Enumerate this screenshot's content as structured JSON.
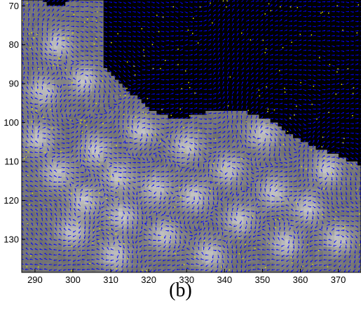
{
  "caption": "(b)",
  "chart_data": {
    "type": "vector-field",
    "title": "",
    "xlabel": "",
    "ylabel": "",
    "xlim": [
      286.5,
      376
    ],
    "ylim": [
      138.5,
      68.5
    ],
    "y_direction": "downward",
    "xticks": [
      290,
      300,
      310,
      320,
      330,
      340,
      350,
      360,
      370
    ],
    "yticks": [
      70,
      80,
      90,
      100,
      110,
      120,
      130
    ],
    "background_colors": {
      "masked_region": "#000000",
      "image_low": "#6e6e6e",
      "image_high": "#c8c8c8"
    },
    "vector_color": "#0000ff",
    "marker_color": "#e8e800",
    "mask_boundary": [
      {
        "x": 286.5,
        "y": 68.5
      },
      {
        "x": 292,
        "y": 68.5
      },
      {
        "x": 293,
        "y": 70
      },
      {
        "x": 298,
        "y": 70
      },
      {
        "x": 299,
        "y": 68.5
      },
      {
        "x": 308,
        "y": 68.5
      },
      {
        "x": 308,
        "y": 86
      },
      {
        "x": 310,
        "y": 88
      },
      {
        "x": 313,
        "y": 91
      },
      {
        "x": 316,
        "y": 93
      },
      {
        "x": 319,
        "y": 96
      },
      {
        "x": 323,
        "y": 98
      },
      {
        "x": 327,
        "y": 99
      },
      {
        "x": 331,
        "y": 98.5
      },
      {
        "x": 335,
        "y": 97.5
      },
      {
        "x": 339,
        "y": 97
      },
      {
        "x": 344,
        "y": 97
      },
      {
        "x": 348,
        "y": 98
      },
      {
        "x": 353,
        "y": 100
      },
      {
        "x": 357,
        "y": 103
      },
      {
        "x": 361,
        "y": 105
      },
      {
        "x": 365,
        "y": 107
      },
      {
        "x": 369,
        "y": 108
      },
      {
        "x": 373,
        "y": 110
      },
      {
        "x": 376,
        "y": 111
      }
    ],
    "blob_centers": [
      {
        "x": 291,
        "y": 104
      },
      {
        "x": 296,
        "y": 113
      },
      {
        "x": 303,
        "y": 120
      },
      {
        "x": 300,
        "y": 128
      },
      {
        "x": 306,
        "y": 107
      },
      {
        "x": 312,
        "y": 114
      },
      {
        "x": 313,
        "y": 124
      },
      {
        "x": 311,
        "y": 134
      },
      {
        "x": 318,
        "y": 102
      },
      {
        "x": 322,
        "y": 117
      },
      {
        "x": 324,
        "y": 129
      },
      {
        "x": 330,
        "y": 106
      },
      {
        "x": 332,
        "y": 119
      },
      {
        "x": 336,
        "y": 134
      },
      {
        "x": 341,
        "y": 112
      },
      {
        "x": 344,
        "y": 125
      },
      {
        "x": 350,
        "y": 103
      },
      {
        "x": 353,
        "y": 118
      },
      {
        "x": 356,
        "y": 131
      },
      {
        "x": 362,
        "y": 122
      },
      {
        "x": 367,
        "y": 112
      },
      {
        "x": 370,
        "y": 130
      },
      {
        "x": 296,
        "y": 80
      },
      {
        "x": 292,
        "y": 92
      },
      {
        "x": 303,
        "y": 89
      }
    ]
  }
}
